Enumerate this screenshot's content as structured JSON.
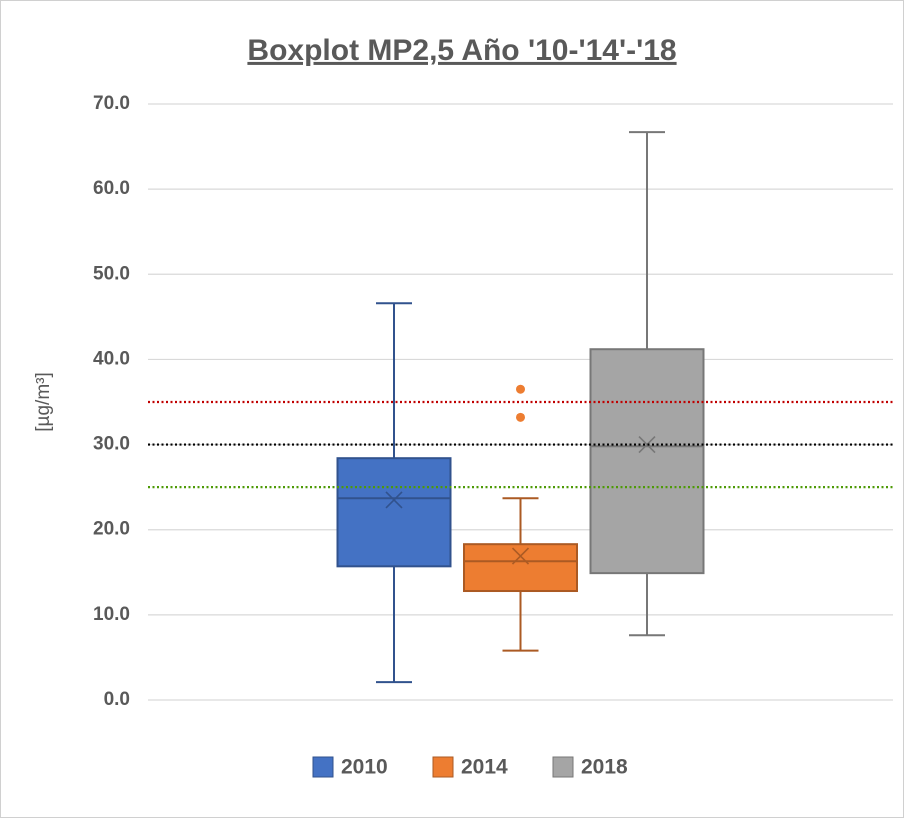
{
  "chart_data": {
    "type": "box",
    "title": "Boxplot MP2,5 Año '10-'14'-'18",
    "y_label": "[µg/m³]",
    "ylim": [
      0,
      70
    ],
    "yticks": [
      {
        "value": 0,
        "label": "0.0"
      },
      {
        "value": 10,
        "label": "10.0"
      },
      {
        "value": 20,
        "label": "20.0"
      },
      {
        "value": 30,
        "label": "30.0"
      },
      {
        "value": 40,
        "label": "40.0"
      },
      {
        "value": 50,
        "label": "50.0"
      },
      {
        "value": 60,
        "label": "60.0"
      },
      {
        "value": 70,
        "label": "70.0"
      }
    ],
    "grid": true,
    "legend": "bottom",
    "series": [
      {
        "name": "2010",
        "color": "#4472c4",
        "min": 2.1,
        "q1": 15.7,
        "median": 23.7,
        "q3": 28.4,
        "max": 46.6,
        "mean": 23.5,
        "outliers": []
      },
      {
        "name": "2014",
        "color": "#ed7d31",
        "min": 5.8,
        "q1": 12.8,
        "median": 16.3,
        "q3": 18.3,
        "max": 23.7,
        "mean": 16.9,
        "outliers": [
          36.5,
          33.2
        ]
      },
      {
        "name": "2018",
        "color": "#a5a5a5",
        "min": 7.6,
        "q1": 14.9,
        "median": 29.8,
        "q3": 41.2,
        "max": 66.7,
        "mean": 30.0,
        "outliers": []
      }
    ],
    "reference_lines": [
      {
        "value": 35,
        "color": "#c00000"
      },
      {
        "value": 30,
        "color": "#000000"
      },
      {
        "value": 25,
        "color": "#4e9a06"
      }
    ]
  }
}
